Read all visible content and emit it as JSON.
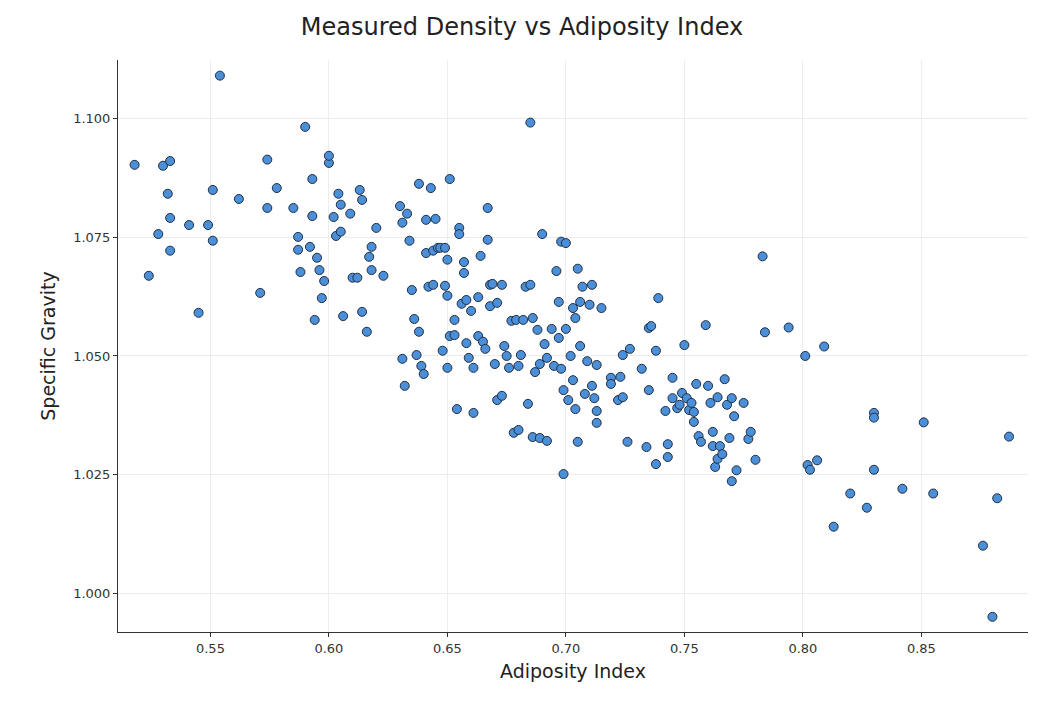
{
  "chart_data": {
    "type": "scatter",
    "title": "Measured Density vs Adiposity Index",
    "x_label": "Adiposity Index",
    "y_label": "Specific Gravity",
    "color": "#4a8fd8",
    "marker": "circle",
    "grid": true,
    "xlim": [
      0.511,
      0.895
    ],
    "xticks": [
      0.55,
      {
        "value": 0.6,
        "label": "0.60"
      },
      0.65,
      {
        "value": 0.7,
        "label": "0.70"
      },
      0.75,
      {
        "value": 0.8,
        "label": "0.80"
      },
      0.85
    ],
    "ylim": [
      0.9918,
      1.1124
    ],
    "yticks": [
      {
        "value": 1,
        "label": "1.000"
      },
      1.025,
      {
        "value": 1.05,
        "label": "1.050"
      },
      1.075,
      {
        "value": 1.1,
        "label": "1.100"
      }
    ],
    "x": [
      0.518,
      0.524,
      0.528,
      0.53,
      0.532,
      0.533,
      0.533,
      0.533,
      0.541,
      0.545,
      0.549,
      0.551,
      0.551,
      0.554,
      0.562,
      0.571,
      0.574,
      0.574,
      0.578,
      0.585,
      0.587,
      0.587,
      0.588,
      0.59,
      0.593,
      0.592,
      0.593,
      0.594,
      0.595,
      0.596,
      0.597,
      0.598,
      0.6,
      0.6,
      0.602,
      0.603,
      0.604,
      0.605,
      0.605,
      0.606,
      0.609,
      0.61,
      0.612,
      0.613,
      0.614,
      0.614,
      0.616,
      0.617,
      0.618,
      0.618,
      0.62,
      0.623,
      0.63,
      0.631,
      0.631,
      0.632,
      0.633,
      0.634,
      0.635,
      0.636,
      0.637,
      0.638,
      0.638,
      0.639,
      0.64,
      0.641,
      0.641,
      0.642,
      0.643,
      0.644,
      0.644,
      0.645,
      0.646,
      0.647,
      0.648,
      0.649,
      0.649,
      0.65,
      0.65,
      0.65,
      0.651,
      0.651,
      0.653,
      0.653,
      0.654,
      0.655,
      0.655,
      0.656,
      0.657,
      0.657,
      0.658,
      0.658,
      0.659,
      0.66,
      0.661,
      0.661,
      0.663,
      0.663,
      0.664,
      0.665,
      0.666,
      0.667,
      0.667,
      0.668,
      0.668,
      0.669,
      0.67,
      0.671,
      0.671,
      0.673,
      0.673,
      0.674,
      0.675,
      0.676,
      0.677,
      0.678,
      0.679,
      0.68,
      0.68,
      0.681,
      0.682,
      0.683,
      0.684,
      0.685,
      0.685,
      0.686,
      0.686,
      0.687,
      0.688,
      0.689,
      0.689,
      0.69,
      0.691,
      0.692,
      0.692,
      0.694,
      0.695,
      0.696,
      0.697,
      0.697,
      0.698,
      0.698,
      0.699,
      0.699,
      0.7,
      0.7,
      0.701,
      0.702,
      0.703,
      0.703,
      0.704,
      0.704,
      0.705,
      0.705,
      0.706,
      0.706,
      0.707,
      0.708,
      0.709,
      0.71,
      0.711,
      0.711,
      0.712,
      0.713,
      0.713,
      0.713,
      0.715,
      0.719,
      0.719,
      0.722,
      0.723,
      0.724,
      0.724,
      0.726,
      0.727,
      0.732,
      0.734,
      0.735,
      0.735,
      0.736,
      0.738,
      0.738,
      0.739,
      0.742,
      0.743,
      0.743,
      0.745,
      0.745,
      0.747,
      0.748,
      0.749,
      0.75,
      0.751,
      0.752,
      0.753,
      0.754,
      0.754,
      0.755,
      0.756,
      0.757,
      0.759,
      0.76,
      0.761,
      0.762,
      0.762,
      0.763,
      0.764,
      0.764,
      0.765,
      0.766,
      0.767,
      0.768,
      0.769,
      0.77,
      0.77,
      0.771,
      0.772,
      0.775,
      0.777,
      0.778,
      0.78,
      0.783,
      0.784,
      0.794,
      0.801,
      0.809,
      0.802,
      0.806,
      0.803,
      0.82,
      0.813,
      0.827,
      0.83,
      0.83,
      0.83,
      0.842,
      0.851,
      0.855,
      0.876,
      0.88,
      0.882,
      0.887
    ],
    "values": [
      1.0903,
      1.0669,
      1.0757,
      1.0901,
      1.0842,
      1.0911,
      1.0791,
      1.0722,
      1.0776,
      1.0591,
      1.0776,
      1.085,
      1.0743,
      1.1091,
      1.0831,
      1.0633,
      1.0914,
      1.0812,
      1.0854,
      1.0812,
      1.0751,
      1.0724,
      1.0677,
      1.0983,
      1.0795,
      1.073,
      1.0873,
      1.0576,
      1.0707,
      1.0681,
      1.0622,
      1.0658,
      1.0907,
      1.0922,
      1.0793,
      1.0753,
      1.0842,
      1.0819,
      1.0762,
      1.0584,
      1.08,
      1.0665,
      1.0665,
      1.085,
      1.0829,
      1.0593,
      1.0551,
      1.0709,
      1.0681,
      1.073,
      1.077,
      1.0669,
      1.0816,
      1.0781,
      1.0494,
      1.0437,
      1.08,
      1.0743,
      1.0639,
      1.0578,
      1.0502,
      1.0551,
      1.0863,
      1.0479,
      1.0462,
      1.0717,
      1.0787,
      1.0646,
      1.0854,
      1.0722,
      1.065,
      1.0789,
      1.0728,
      1.0728,
      1.0511,
      1.0728,
      1.0648,
      1.0703,
      1.0627,
      1.0475,
      1.0542,
      1.0873,
      1.0544,
      1.0576,
      1.0388,
      1.077,
      1.0757,
      1.061,
      1.0698,
      1.0675,
      1.0527,
      1.0618,
      1.0496,
      1.0595,
      1.038,
      1.0475,
      1.0542,
      1.0624,
      1.0711,
      1.053,
      1.0515,
      1.0812,
      1.0745,
      1.0605,
      1.065,
      1.0652,
      1.0483,
      1.0407,
      1.0612,
      1.0416,
      1.065,
      1.0521,
      1.05,
      1.0475,
      1.0574,
      1.0338,
      1.0576,
      1.0344,
      1.0479,
      1.0502,
      1.0576,
      1.0646,
      1.0399,
      1.065,
      1.0992,
      1.058,
      1.0329,
      1.0466,
      1.0555,
      1.0327,
      1.0483,
      1.0757,
      1.0525,
      1.0321,
      1.0496,
      1.0557,
      1.0479,
      1.0679,
      1.0614,
      1.0538,
      1.0473,
      1.0741,
      1.0251,
      1.0428,
      1.0738,
      1.0557,
      1.0407,
      1.05,
      1.0601,
      1.0449,
      1.0388,
      1.058,
      1.0319,
      1.0684,
      1.0521,
      1.0614,
      1.0646,
      1.042,
      1.0489,
      1.0608,
      1.065,
      1.0437,
      1.0411,
      1.0384,
      1.0359,
      1.0481,
      1.0601,
      1.0454,
      1.0441,
      1.0407,
      1.0456,
      1.0502,
      1.0413,
      1.0319,
      1.0515,
      1.0473,
      1.0308,
      1.0428,
      1.0559,
      1.0563,
      1.0272,
      1.0511,
      1.0622,
      1.0384,
      1.0287,
      1.0314,
      1.0454,
      1.0411,
      1.039,
      1.0397,
      1.0422,
      1.0523,
      1.0411,
      1.0386,
      1.0401,
      1.0382,
      1.0361,
      1.0441,
      1.0331,
      1.0319,
      1.0565,
      1.0437,
      1.0401,
      1.034,
      1.031,
      1.0266,
      1.0283,
      1.0413,
      1.031,
      1.0293,
      1.0451,
      1.0397,
      1.0327,
      1.0236,
      1.0411,
      1.0373,
      1.0259,
      1.0401,
      1.0325,
      1.034,
      1.0281,
      1.071,
      1.055,
      1.056,
      1.05,
      1.052,
      1.027,
      1.028,
      1.026,
      1.021,
      1.014,
      1.018,
      1.038,
      1.037,
      1.026,
      1.022,
      1.036,
      1.021,
      1.01,
      0.995,
      1.02,
      1.033
    ]
  }
}
